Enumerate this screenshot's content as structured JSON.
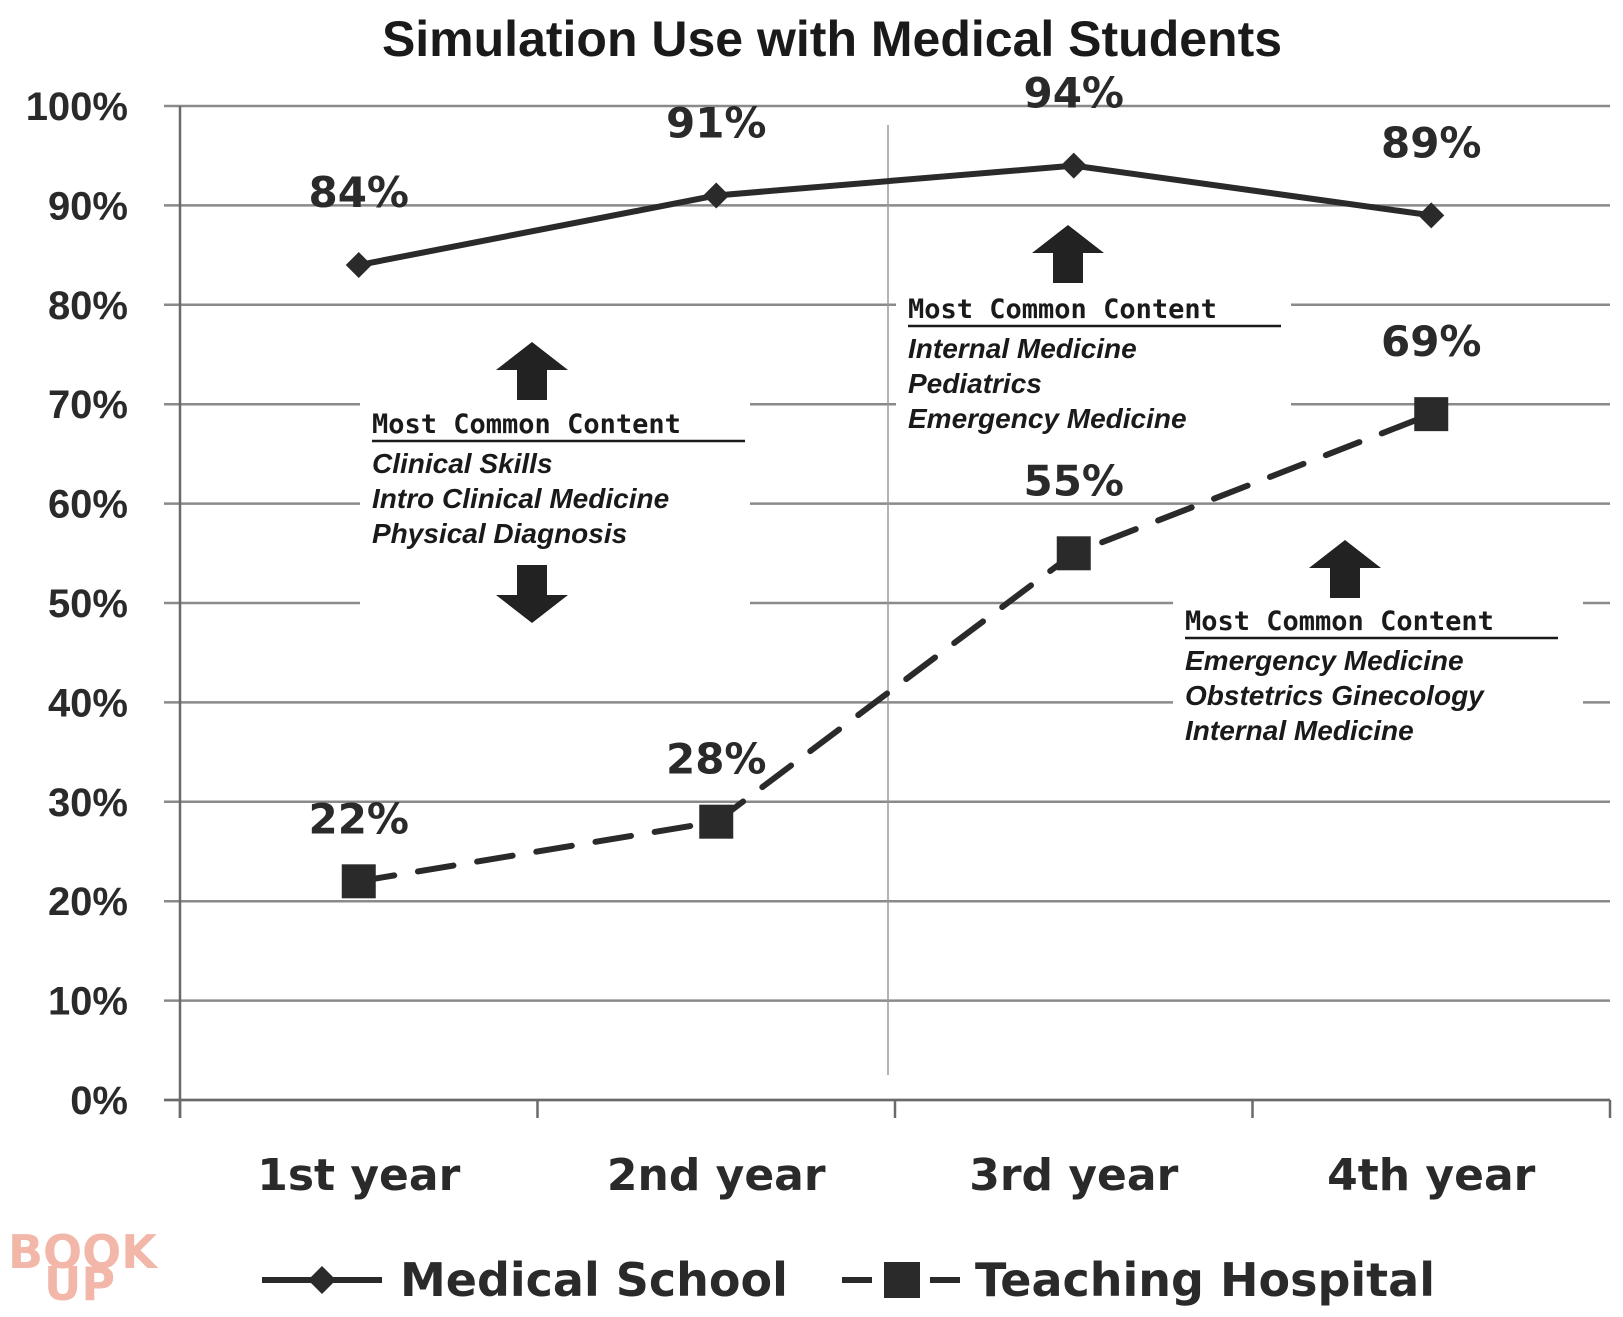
{
  "chart_data": {
    "type": "line",
    "title": "Simulation Use with Medical Students",
    "categories": [
      "1st year",
      "2nd year",
      "3rd year",
      "4th year"
    ],
    "y_ticks": [
      "0%",
      "10%",
      "20%",
      "30%",
      "40%",
      "50%",
      "60%",
      "70%",
      "80%",
      "90%",
      "100%"
    ],
    "ylim": [
      0,
      100
    ],
    "grid": true,
    "legend_position": "bottom",
    "series": [
      {
        "name": "Medical School",
        "values": [
          84,
          91,
          94,
          89
        ],
        "labels": [
          "84%",
          "91%",
          "94%",
          "89%"
        ],
        "style": "solid",
        "marker": "diamond",
        "color": "#2a2a2a"
      },
      {
        "name": "Teaching Hospital",
        "values": [
          22,
          28,
          55,
          69
        ],
        "labels": [
          "22%",
          "28%",
          "55%",
          "69%"
        ],
        "style": "dashed",
        "marker": "square",
        "color": "#2a2a2a"
      }
    ],
    "annotations": [
      {
        "heading": "Most Common Content",
        "items": [
          "Clinical Skills",
          "Intro Clinical Medicine",
          "Physical Diagnosis"
        ],
        "arrows": [
          "up",
          "down"
        ]
      },
      {
        "heading": "Most Common Content",
        "items": [
          "Internal Medicine",
          "Pediatrics",
          "Emergency Medicine"
        ],
        "arrows": [
          "up"
        ]
      },
      {
        "heading": "Most Common Content",
        "items": [
          "Emergency Medicine",
          "Obstetrics Ginecology",
          "Internal Medicine"
        ],
        "arrows": [
          "up"
        ]
      }
    ]
  },
  "watermark": {
    "line1": "BOOK",
    "line2": "UP"
  }
}
